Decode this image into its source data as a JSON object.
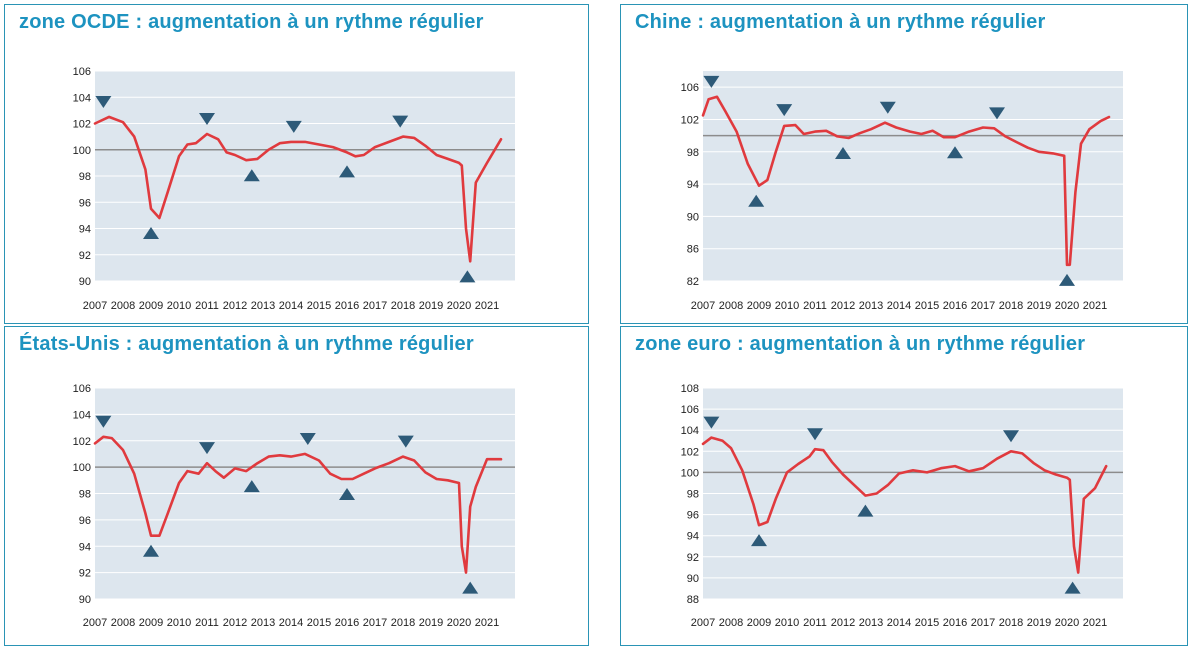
{
  "colors": {
    "line": "#e03a3e",
    "ref": "#8c8c8c",
    "plot_bg": "#dde6ee",
    "grid": "#ffffff",
    "marker": "#2d5a78",
    "title": "#1d93c0",
    "frame": "#2a94b5"
  },
  "chart_data": [
    {
      "type": "line",
      "title": "zone OCDE :  augmentation à un rythme régulier",
      "x_tick_labels": [
        "2007",
        "2008",
        "2009",
        "2010",
        "2011",
        "2012",
        "2013",
        "2014",
        "2015",
        "2016",
        "2017",
        "2018",
        "2019",
        "2020",
        "2021"
      ],
      "xlim": [
        2007,
        2022
      ],
      "ylim": [
        90,
        106
      ],
      "y_ticks": [
        90,
        92,
        94,
        96,
        98,
        100,
        102,
        104,
        106
      ],
      "reference_line": 100,
      "series": [
        {
          "x": [
            2007,
            2007.5,
            2008,
            2008.4,
            2008.8,
            2009,
            2009.3,
            2009.6,
            2010,
            2010.3,
            2010.6,
            2011,
            2011.4,
            2011.7,
            2012,
            2012.4,
            2012.8,
            2013.2,
            2013.6,
            2014,
            2014.5,
            2015,
            2015.5,
            2016,
            2016.3,
            2016.6,
            2017,
            2017.5,
            2018,
            2018.4,
            2018.8,
            2019.2,
            2019.6,
            2020,
            2020.1,
            2020.25,
            2020.4,
            2020.6,
            2021,
            2021.5
          ],
          "y": [
            102,
            102.5,
            102.1,
            101,
            98.5,
            95.5,
            94.8,
            96.8,
            99.5,
            100.4,
            100.5,
            101.2,
            100.8,
            99.8,
            99.6,
            99.2,
            99.3,
            100.0,
            100.5,
            100.6,
            100.6,
            100.4,
            100.2,
            99.8,
            99.5,
            99.6,
            100.2,
            100.6,
            101.0,
            100.9,
            100.3,
            99.6,
            99.3,
            99.0,
            98.8,
            94,
            91.5,
            97.5,
            99.0,
            100.8
          ]
        }
      ],
      "turning_points": [
        {
          "x": 2007.3,
          "type": "peak"
        },
        {
          "x": 2009.0,
          "type": "trough"
        },
        {
          "x": 2011.0,
          "type": "peak"
        },
        {
          "x": 2012.6,
          "type": "trough"
        },
        {
          "x": 2014.1,
          "type": "peak"
        },
        {
          "x": 2016.0,
          "type": "trough"
        },
        {
          "x": 2017.9,
          "type": "peak"
        },
        {
          "x": 2020.3,
          "type": "trough"
        }
      ]
    },
    {
      "type": "line",
      "title": "Chine : augmentation à un rythme régulier",
      "x_tick_labels": [
        "2007",
        "2008",
        "2009",
        "2010",
        "2011",
        "2012",
        "2013",
        "2014",
        "2015",
        "2016",
        "2017",
        "2018",
        "2019",
        "2020",
        "2021"
      ],
      "xlim": [
        2007,
        2022
      ],
      "ylim": [
        82,
        108
      ],
      "y_ticks": [
        82,
        86,
        90,
        94,
        98,
        102,
        106
      ],
      "reference_line": 100,
      "series": [
        {
          "x": [
            2007,
            2007.2,
            2007.5,
            2007.8,
            2008.2,
            2008.6,
            2009,
            2009.3,
            2009.6,
            2009.9,
            2010.3,
            2010.6,
            2011,
            2011.4,
            2011.8,
            2012.2,
            2012.6,
            2013,
            2013.5,
            2013.9,
            2014.4,
            2014.8,
            2015.2,
            2015.6,
            2016,
            2016.5,
            2017,
            2017.4,
            2017.8,
            2018.2,
            2018.6,
            2019,
            2019.5,
            2019.9,
            2020,
            2020.1,
            2020.3,
            2020.5,
            2020.8,
            2021.2,
            2021.5
          ],
          "y": [
            102.5,
            104.5,
            104.8,
            103,
            100.5,
            96.5,
            93.8,
            94.5,
            98,
            101.2,
            101.3,
            100.2,
            100.5,
            100.6,
            99.9,
            99.7,
            100.3,
            100.8,
            101.6,
            101.0,
            100.5,
            100.2,
            100.6,
            99.8,
            99.8,
            100.5,
            101.0,
            100.9,
            99.9,
            99.2,
            98.5,
            98.0,
            97.8,
            97.5,
            84.0,
            84.0,
            93.0,
            99.0,
            100.8,
            101.8,
            102.3
          ]
        }
      ],
      "turning_points": [
        {
          "x": 2007.3,
          "type": "peak"
        },
        {
          "x": 2008.9,
          "type": "trough"
        },
        {
          "x": 2009.9,
          "type": "peak"
        },
        {
          "x": 2012.0,
          "type": "trough"
        },
        {
          "x": 2013.6,
          "type": "peak"
        },
        {
          "x": 2016.0,
          "type": "trough"
        },
        {
          "x": 2017.5,
          "type": "peak"
        },
        {
          "x": 2020.0,
          "type": "trough"
        }
      ]
    },
    {
      "type": "line",
      "title": "États-Unis : augmentation à un rythme régulier",
      "x_tick_labels": [
        "2007",
        "2008",
        "2009",
        "2010",
        "2011",
        "2012",
        "2013",
        "2014",
        "2015",
        "2016",
        "2017",
        "2018",
        "2019",
        "2020",
        "2021"
      ],
      "xlim": [
        2007,
        2022
      ],
      "ylim": [
        90,
        106
      ],
      "y_ticks": [
        90,
        92,
        94,
        96,
        98,
        100,
        102,
        104,
        106
      ],
      "reference_line": 100,
      "series": [
        {
          "x": [
            2007,
            2007.3,
            2007.6,
            2008,
            2008.4,
            2008.8,
            2009,
            2009.3,
            2009.6,
            2010,
            2010.3,
            2010.7,
            2011,
            2011.3,
            2011.6,
            2012,
            2012.4,
            2012.8,
            2013.2,
            2013.6,
            2014,
            2014.5,
            2015,
            2015.4,
            2015.8,
            2016.2,
            2016.6,
            2017,
            2017.5,
            2018,
            2018.4,
            2018.8,
            2019.2,
            2019.6,
            2020,
            2020.1,
            2020.25,
            2020.4,
            2020.6,
            2021,
            2021.5
          ],
          "y": [
            101.8,
            102.3,
            102.2,
            101.3,
            99.5,
            96.5,
            94.8,
            94.8,
            96.5,
            98.8,
            99.7,
            99.5,
            100.3,
            99.7,
            99.2,
            99.9,
            99.7,
            100.3,
            100.8,
            100.9,
            100.8,
            101.0,
            100.5,
            99.5,
            99.1,
            99.1,
            99.5,
            99.9,
            100.3,
            100.8,
            100.5,
            99.6,
            99.1,
            99.0,
            98.8,
            94,
            92.0,
            97.0,
            98.5,
            100.6,
            100.6
          ]
        }
      ],
      "turning_points": [
        {
          "x": 2007.3,
          "type": "peak"
        },
        {
          "x": 2009.0,
          "type": "trough"
        },
        {
          "x": 2011.0,
          "type": "peak"
        },
        {
          "x": 2012.6,
          "type": "trough"
        },
        {
          "x": 2014.6,
          "type": "peak"
        },
        {
          "x": 2016.0,
          "type": "trough"
        },
        {
          "x": 2018.1,
          "type": "peak"
        },
        {
          "x": 2020.4,
          "type": "trough"
        }
      ]
    },
    {
      "type": "line",
      "title": "zone euro : augmentation à un rythme régulier",
      "x_tick_labels": [
        "2007",
        "2008",
        "2009",
        "2010",
        "2011",
        "2012",
        "2013",
        "2014",
        "2015",
        "2016",
        "2017",
        "2018",
        "2019",
        "2020",
        "2021"
      ],
      "xlim": [
        2007,
        2022
      ],
      "ylim": [
        88,
        108
      ],
      "y_ticks": [
        88,
        90,
        92,
        94,
        96,
        98,
        100,
        102,
        104,
        106,
        108
      ],
      "reference_line": 100,
      "series": [
        {
          "x": [
            2007,
            2007.3,
            2007.7,
            2008,
            2008.4,
            2008.8,
            2009,
            2009.3,
            2009.6,
            2010,
            2010.4,
            2010.8,
            2011,
            2011.3,
            2011.6,
            2012,
            2012.4,
            2012.8,
            2013.2,
            2013.6,
            2014,
            2014.5,
            2015,
            2015.5,
            2016,
            2016.5,
            2017,
            2017.5,
            2018,
            2018.4,
            2018.8,
            2019.2,
            2019.6,
            2020,
            2020.1,
            2020.25,
            2020.4,
            2020.6,
            2021,
            2021.4
          ],
          "y": [
            102.7,
            103.3,
            103.0,
            102.3,
            100.2,
            97.0,
            95.0,
            95.3,
            97.5,
            100.0,
            100.8,
            101.5,
            102.2,
            102.1,
            101.0,
            99.8,
            98.8,
            97.8,
            98.0,
            98.8,
            99.9,
            100.2,
            100.0,
            100.4,
            100.6,
            100.1,
            100.4,
            101.3,
            102.0,
            101.8,
            100.9,
            100.2,
            99.8,
            99.5,
            99.3,
            93,
            90.5,
            97.5,
            98.5,
            100.6
          ]
        }
      ],
      "turning_points": [
        {
          "x": 2007.3,
          "type": "peak"
        },
        {
          "x": 2009.0,
          "type": "trough"
        },
        {
          "x": 2011.0,
          "type": "peak"
        },
        {
          "x": 2012.8,
          "type": "trough"
        },
        {
          "x": 2018.0,
          "type": "peak"
        },
        {
          "x": 2020.2,
          "type": "trough"
        }
      ]
    }
  ]
}
